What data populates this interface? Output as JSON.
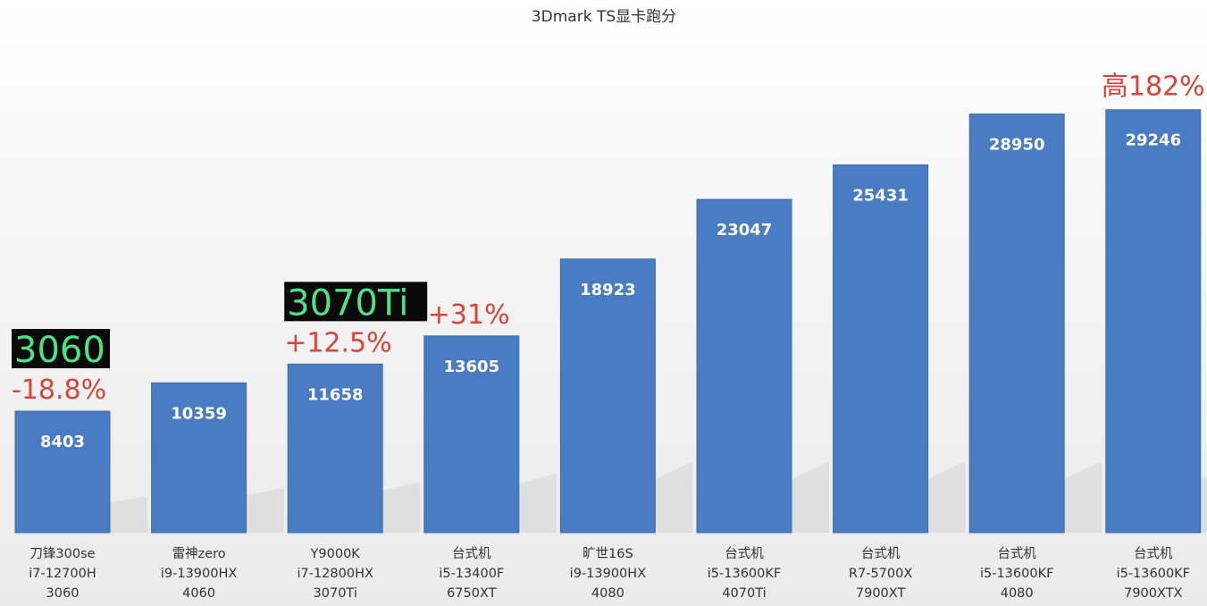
{
  "chart_data": {
    "type": "bar",
    "title": "3Dmark TS显卡跑分",
    "categories": [
      [
        "刀锋300se",
        "i7-12700H",
        "3060"
      ],
      [
        "雷神zero",
        "i9-13900HX",
        "4060"
      ],
      [
        "Y9000K",
        "i7-12800HX",
        "3070Ti"
      ],
      [
        "台式机",
        "i5-13400F",
        "6750XT"
      ],
      [
        "旷世16S",
        "i9-13900HX",
        "4080"
      ],
      [
        "台式机",
        "i5-13600KF",
        "4070Ti"
      ],
      [
        "台式机",
        "R7-5700X",
        "7900XT"
      ],
      [
        "台式机",
        "i5-13600KF",
        "4080"
      ],
      [
        "台式机",
        "i5-13600KF",
        "7900XTX"
      ]
    ],
    "values": [
      8403,
      10359,
      11658,
      13605,
      18923,
      23047,
      25431,
      28950,
      29246
    ],
    "value_labels": [
      "8403",
      "10359",
      "11658",
      "13605",
      "18923",
      "23047",
      "25431",
      "28950",
      "29246"
    ],
    "ylim": [
      0,
      33000
    ],
    "grid": false,
    "xlabel": "",
    "ylabel": "",
    "colors": {
      "bar": "#4a7cc4",
      "bar_edge": "#3f6db0",
      "annotation_text": "#d9443a",
      "highlight_box_bg": "#0a0a0a",
      "highlight_box_text": "#4de28a"
    },
    "annotations": [
      {
        "bar_index": 0,
        "box_text": "3060",
        "pct_text": "-18.8%"
      },
      {
        "bar_index": 2,
        "box_text": "3070Ti",
        "pct_text": "+12.5%"
      },
      {
        "bar_index": 3,
        "box_text": "",
        "pct_text": "+31%"
      },
      {
        "bar_index": 8,
        "box_text": "",
        "pct_text": "高182%"
      }
    ]
  }
}
